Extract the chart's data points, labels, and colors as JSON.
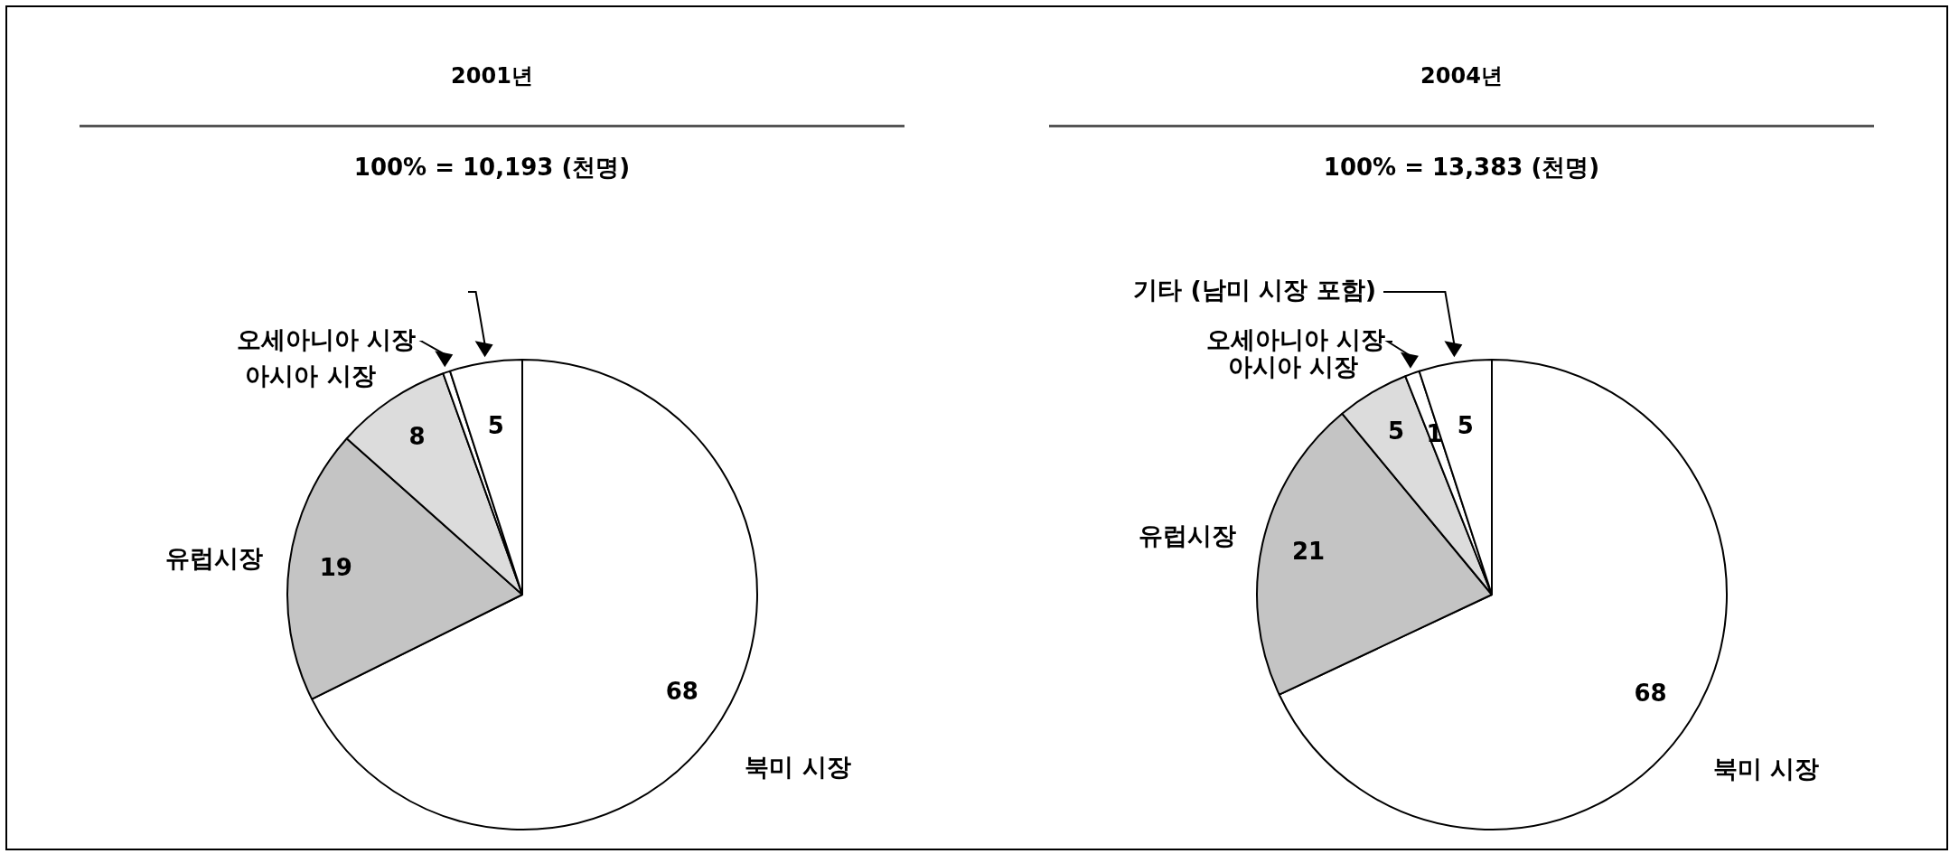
{
  "chart_data": [
    {
      "type": "pie",
      "title": "2001년",
      "subtitle": "100% = 10,193 (천명)",
      "categories": [
        "북미 시장",
        "유럽시장",
        "아시아 시장",
        "오세아니아 시장",
        null
      ],
      "values": [
        68,
        19,
        8,
        0.5,
        5
      ],
      "colors": [
        "#ffffff",
        "#c4c4c4",
        "#dcdcdc",
        "#ffffff",
        "#ffffff"
      ],
      "value_labels": [
        "68",
        "19",
        "8",
        null,
        "5"
      ]
    },
    {
      "type": "pie",
      "title": "2004년",
      "subtitle": "100% = 13,383 (천명)",
      "categories": [
        "북미 시장",
        "유럽시장",
        "아시아 시장",
        "오세아니아 시장",
        "기타 (남미 시장 포함)"
      ],
      "values": [
        68,
        21,
        5,
        1,
        5
      ],
      "colors": [
        "#ffffff",
        "#c4c4c4",
        "#dcdcdc",
        "#ffffff",
        "#ffffff"
      ],
      "data_labels": true
    }
  ]
}
